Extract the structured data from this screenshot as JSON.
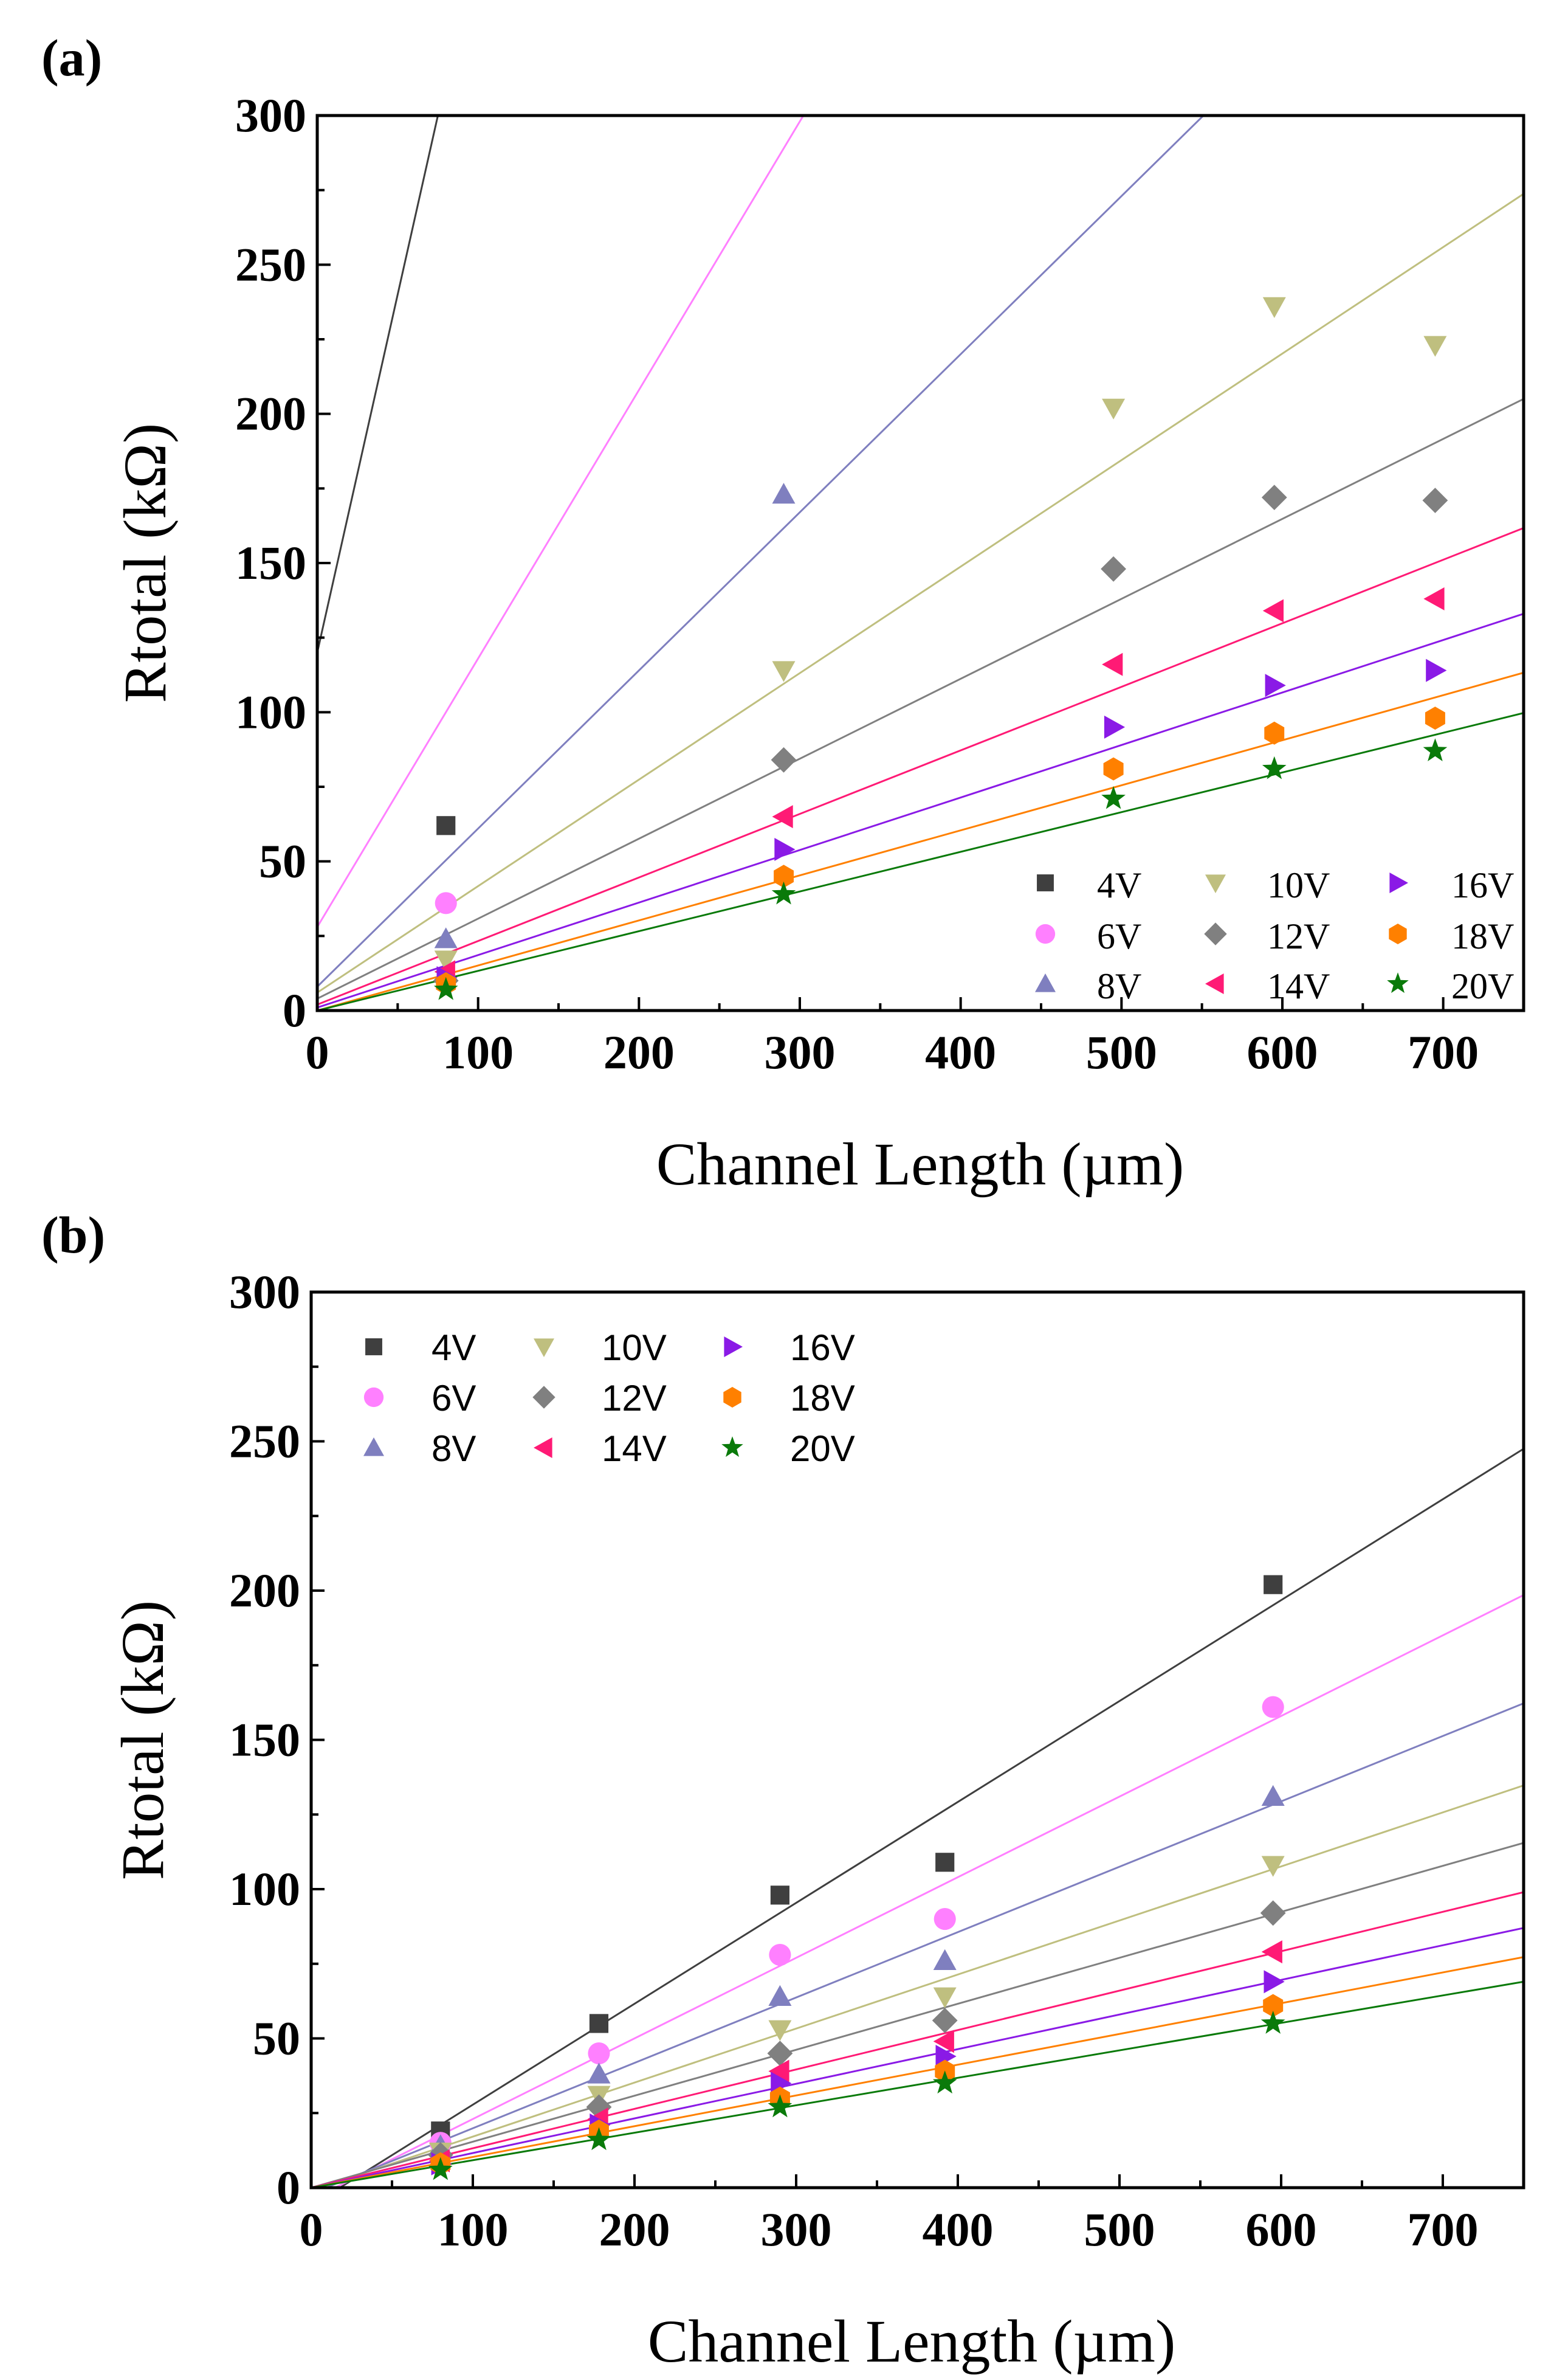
{
  "colors": {
    "4V": "#3f3f3f",
    "6V": "#ff80ff",
    "8V": "#7f7fbf",
    "10V": "#bfbf7f",
    "12V": "#808080",
    "14V": "#ff1a75",
    "16V": "#8a1ae6",
    "18V": "#ff8000",
    "20V": "#0a7a0a"
  },
  "chart_data": [
    {
      "panel_label": "(a)",
      "type": "scatter",
      "xlabel": "Channel Length (µm)",
      "ylabel": "Rtotal (kΩ)",
      "xlim": [
        0,
        750
      ],
      "ylim": [
        0,
        300
      ],
      "xticks": [
        "0",
        "100",
        "200",
        "300",
        "400",
        "500",
        "600",
        "700"
      ],
      "yticks": [
        "0",
        "50",
        "100",
        "150",
        "200",
        "250",
        "300"
      ],
      "legend_position": "bottom-right",
      "series": [
        {
          "name": "4V",
          "marker": "square",
          "x": [
            80
          ],
          "y": [
            62
          ],
          "fit": {
            "slope": 2.4,
            "intercept": 120
          }
        },
        {
          "name": "6V",
          "marker": "circle",
          "x": [
            80
          ],
          "y": [
            36
          ],
          "fit": {
            "slope": 0.9,
            "intercept": 28
          }
        },
        {
          "name": "8V",
          "marker": "triangle-up",
          "x": [
            80,
            290
          ],
          "y": [
            24,
            173
          ],
          "fit": {
            "slope": 0.53,
            "intercept": 8
          }
        },
        {
          "name": "10V",
          "marker": "triangle-down",
          "x": [
            80,
            290,
            495,
            595,
            695
          ],
          "y": [
            17,
            114,
            202,
            236,
            223
          ],
          "fit": {
            "slope": 0.357,
            "intercept": 6
          }
        },
        {
          "name": "12V",
          "marker": "diamond",
          "x": [
            80,
            290,
            495,
            595,
            695
          ],
          "y": [
            10,
            84,
            148,
            172,
            171
          ],
          "fit": {
            "slope": 0.268,
            "intercept": 4
          }
        },
        {
          "name": "14V",
          "marker": "triangle-left",
          "x": [
            80,
            290,
            495,
            595,
            695
          ],
          "y": [
            13,
            65,
            116,
            134,
            138
          ],
          "fit": {
            "slope": 0.213,
            "intercept": 2
          }
        },
        {
          "name": "16V",
          "marker": "triangle-right",
          "x": [
            80,
            290,
            495,
            595,
            695
          ],
          "y": [
            11,
            54,
            95,
            109,
            114
          ],
          "fit": {
            "slope": 0.176,
            "intercept": 1
          }
        },
        {
          "name": "18V",
          "marker": "hexagon",
          "x": [
            80,
            290,
            495,
            595,
            695
          ],
          "y": [
            9,
            45,
            81,
            93,
            98
          ],
          "fit": {
            "slope": 0.151,
            "intercept": 0
          }
        },
        {
          "name": "20V",
          "marker": "star",
          "x": [
            80,
            290,
            495,
            595,
            695
          ],
          "y": [
            7,
            39,
            71,
            81,
            87
          ],
          "fit": {
            "slope": 0.133,
            "intercept": 0
          }
        }
      ]
    },
    {
      "panel_label": "(b)",
      "type": "scatter",
      "xlabel": "Channel Length (µm)",
      "ylabel": "Rtotal (kΩ)",
      "xlim": [
        0,
        750
      ],
      "ylim": [
        0,
        300
      ],
      "xticks": [
        "0",
        "100",
        "200",
        "300",
        "400",
        "500",
        "600",
        "700"
      ],
      "yticks": [
        "0",
        "50",
        "100",
        "150",
        "200",
        "250",
        "300"
      ],
      "legend_position": "top-left",
      "series": [
        {
          "name": "4V",
          "marker": "square",
          "x": [
            80,
            178,
            290,
            392,
            595
          ],
          "y": [
            19,
            55,
            98,
            109,
            202
          ],
          "fit": {
            "slope": 0.338,
            "intercept": -6
          }
        },
        {
          "name": "6V",
          "marker": "circle",
          "x": [
            80,
            178,
            290,
            392,
            595
          ],
          "y": [
            15,
            45,
            78,
            90,
            161
          ],
          "fit": {
            "slope": 0.27,
            "intercept": -4
          }
        },
        {
          "name": "8V",
          "marker": "triangle-up",
          "x": [
            80,
            178,
            290,
            392,
            595
          ],
          "y": [
            14,
            38,
            64,
            76,
            131
          ],
          "fit": {
            "slope": 0.219,
            "intercept": -2
          }
        },
        {
          "name": "10V",
          "marker": "triangle-down",
          "x": [
            80,
            178,
            290,
            392,
            595
          ],
          "y": [
            12,
            31,
            53,
            64,
            108
          ],
          "fit": {
            "slope": 0.181,
            "intercept": -1
          }
        },
        {
          "name": "12V",
          "marker": "diamond",
          "x": [
            80,
            178,
            290,
            392,
            595
          ],
          "y": [
            11,
            27,
            45,
            56,
            92
          ],
          "fit": {
            "slope": 0.154,
            "intercept": 0
          }
        },
        {
          "name": "14V",
          "marker": "triangle-left",
          "x": [
            80,
            178,
            290,
            392,
            595
          ],
          "y": [
            9,
            23,
            39,
            49,
            79
          ],
          "fit": {
            "slope": 0.132,
            "intercept": 0
          }
        },
        {
          "name": "16V",
          "marker": "triangle-right",
          "x": [
            80,
            178,
            290,
            392,
            595
          ],
          "y": [
            8,
            21,
            35,
            44,
            69
          ],
          "fit": {
            "slope": 0.116,
            "intercept": 0
          }
        },
        {
          "name": "18V",
          "marker": "hexagon",
          "x": [
            80,
            178,
            290,
            392,
            595
          ],
          "y": [
            8,
            19,
            30,
            39,
            61
          ],
          "fit": {
            "slope": 0.103,
            "intercept": 0
          }
        },
        {
          "name": "20V",
          "marker": "star",
          "x": [
            80,
            178,
            290,
            392,
            595
          ],
          "y": [
            6,
            16,
            27,
            35,
            55
          ],
          "fit": {
            "slope": 0.092,
            "intercept": 0
          }
        }
      ]
    }
  ]
}
